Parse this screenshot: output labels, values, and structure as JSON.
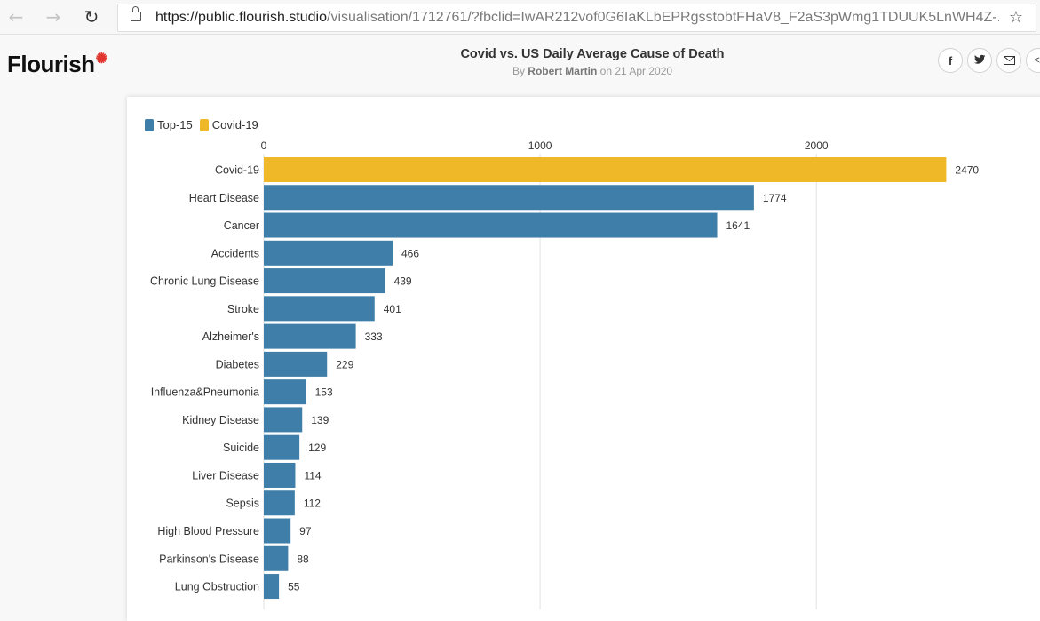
{
  "browser": {
    "back_icon": "arrow-left-icon",
    "forward_icon": "arrow-right-icon",
    "reload_icon": "reload-icon",
    "url_host": "https://public.flourish.studio",
    "url_path": "/visualisation/1712761/?fbclid=IwAR212vof0G6IaKLbEPRgsstobtFHaV8_F2aS3pWmg1TDUUK5LnWH4Z-...",
    "favorite_icon": "star-icon"
  },
  "header": {
    "logo": "Flourish",
    "title": "Covid vs. US Daily Average Cause of Death",
    "byline_prefix": "By",
    "author": "Robert Martin",
    "byline_date": "on 21 Apr 2020",
    "share_buttons": [
      "facebook-icon",
      "twitter-icon",
      "email-icon",
      "embed-icon"
    ],
    "share_glyphs": [
      "f",
      "🐦",
      "✉",
      "</"
    ]
  },
  "colors": {
    "top15": "#3f7ea8",
    "covid": "#eeb829",
    "grid": "#e2e2e2"
  },
  "chart_data": {
    "type": "bar",
    "orientation": "horizontal",
    "title": "Covid vs. US Daily Average Cause of Death",
    "legend": [
      {
        "name": "Top-15",
        "color": "#3f7ea8"
      },
      {
        "name": "Covid-19",
        "color": "#eeb829"
      }
    ],
    "legend_placement": "top-left",
    "x_ticks": [
      0,
      1000,
      2000
    ],
    "xlim": [
      0,
      2700
    ],
    "grid": true,
    "categories": [
      "Covid-19",
      "Heart Disease",
      "Cancer",
      "Accidents",
      "Chronic Lung Disease",
      "Stroke",
      "Alzheimer's",
      "Diabetes",
      "Influenza&Pneumonia",
      "Kidney Disease",
      "Suicide",
      "Liver Disease",
      "Sepsis",
      "High Blood Pressure",
      "Parkinson's Disease",
      "Lung Obstruction"
    ],
    "values": [
      2470,
      1774,
      1641,
      466,
      439,
      401,
      333,
      229,
      153,
      139,
      129,
      114,
      112,
      97,
      88,
      55
    ],
    "groups": [
      "Covid-19",
      "Top-15",
      "Top-15",
      "Top-15",
      "Top-15",
      "Top-15",
      "Top-15",
      "Top-15",
      "Top-15",
      "Top-15",
      "Top-15",
      "Top-15",
      "Top-15",
      "Top-15",
      "Top-15",
      "Top-15"
    ]
  }
}
